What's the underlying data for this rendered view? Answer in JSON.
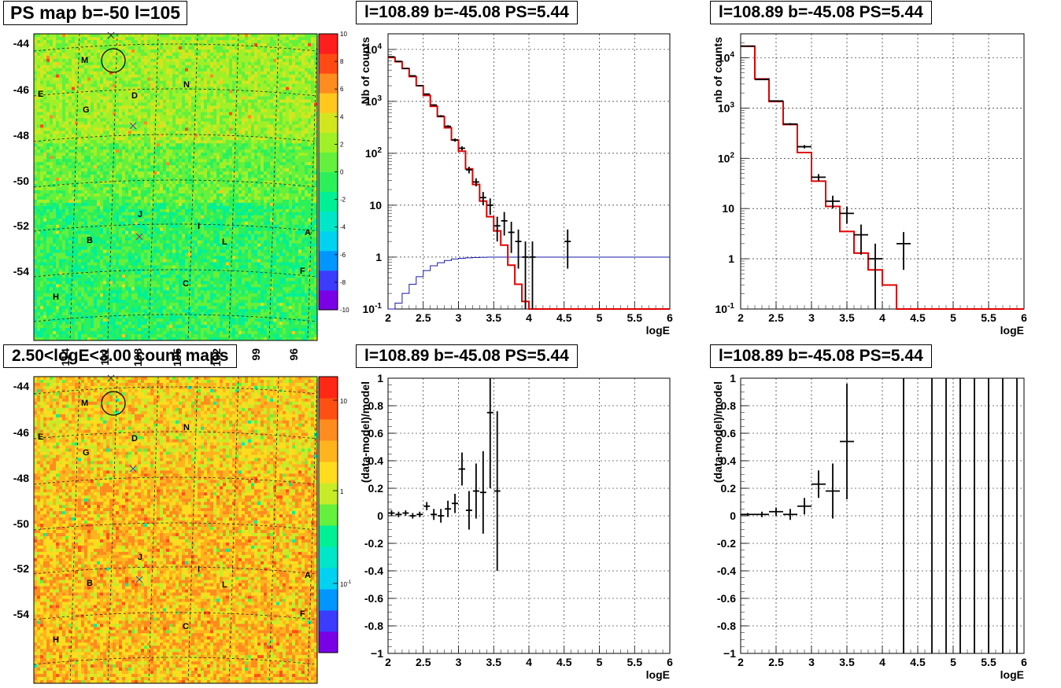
{
  "panels": {
    "map_top_title": "PS map b=-50 l=105",
    "map_bottom_title": "2.50<logE<3.00 count maps",
    "spec_title": "l=108.89 b=-45.08 PS=5.44"
  },
  "maps": {
    "lat_ticks": [
      "-44",
      "-46",
      "-48",
      "-50",
      "-52",
      "-54"
    ],
    "lon_ticks": [
      "114",
      "111",
      "108",
      "105",
      "102",
      "99",
      "96"
    ],
    "source_labels": [
      "M",
      "E",
      "G",
      "D",
      "N",
      "J",
      "I",
      "B",
      "L",
      "A",
      "C",
      "F",
      "H"
    ],
    "top_z_ticks": [
      "10",
      "8",
      "6",
      "4",
      "2",
      "0",
      "-2",
      "-4",
      "-6",
      "-8",
      "-10"
    ],
    "bottom_z_ticks": [
      "10",
      "1",
      "10^-1"
    ],
    "top_palette": [
      "#7a00e6",
      "#3c3cff",
      "#0096ff",
      "#00d2f0",
      "#00e6c8",
      "#00f096",
      "#2cf05a",
      "#64f03c",
      "#a0f028",
      "#d2e61e",
      "#ffc81e",
      "#ff8c1e",
      "#ff4a14",
      "#ff1e1e"
    ],
    "bottom_palette": [
      "#7a00e6",
      "#3c3cff",
      "#0096ff",
      "#00d2f0",
      "#00e6c8",
      "#00f096",
      "#64f03c",
      "#c8eb28",
      "#ffdc1e",
      "#ffb41e",
      "#ff8c1e",
      "#ff5014",
      "#ff2814"
    ]
  },
  "axes": {
    "xlabel": "logE",
    "ylabel_counts_left": "Nb of counts",
    "ylabel_counts_right": "nb of counts",
    "ylabel_resid": "(data-model)/model",
    "xticks": [
      "2",
      "2.5",
      "3",
      "3.5",
      "4",
      "4.5",
      "5",
      "5.5",
      "6"
    ],
    "log_ticks": [
      "10^{4}",
      "10^{3}",
      "10^{2}",
      "10",
      "1",
      "10^{-1}"
    ],
    "resid_ticks": [
      "1",
      "0.8",
      "0.6",
      "0.4",
      "0.2",
      "0",
      "-0.2",
      "-0.4",
      "-0.6",
      "-0.8",
      "-1"
    ]
  },
  "chart_data": [
    {
      "type": "heatmap",
      "title": "PS map b=-50 l=105",
      "zlim": [
        -10,
        10
      ],
      "xlim": [
        115,
        94
      ],
      "ylim": [
        -55.5,
        -43.5
      ]
    },
    {
      "type": "heatmap",
      "title": "2.50<logE<3.00 count maps",
      "scale": "log",
      "zlim": [
        0.03,
        20
      ]
    },
    {
      "type": "line",
      "title": "l=108.89 b=-45.08 PS=5.44",
      "xlabel": "logE",
      "ylabel": "Nb of counts",
      "xlim": [
        2,
        6
      ],
      "ylim": [
        0.1,
        20000
      ],
      "yscale": "log",
      "grid": true,
      "model_steps": {
        "edges": [
          2,
          2.1,
          2.2,
          2.3,
          2.4,
          2.5,
          2.6,
          2.7,
          2.8,
          2.9,
          3,
          3.1,
          3.2,
          3.3,
          3.4,
          3.5,
          3.6,
          3.7,
          3.8,
          3.9,
          4,
          4.1,
          6
        ],
        "values": [
          7000,
          5800,
          4300,
          3000,
          2000,
          1300,
          800,
          510,
          310,
          180,
          110,
          50,
          25,
          12,
          6,
          3.2,
          1.7,
          0.7,
          0.3,
          0.14,
          0.1,
          0.1
        ]
      },
      "source_model": {
        "x": [
          2.0,
          2.1,
          2.2,
          2.3,
          2.4,
          2.5,
          2.6,
          2.7,
          2.8,
          2.9,
          3.0,
          3.1,
          3.2,
          3.3,
          3.4,
          4.0,
          6.0
        ],
        "y": [
          0.1,
          0.13,
          0.2,
          0.3,
          0.42,
          0.55,
          0.68,
          0.78,
          0.86,
          0.92,
          0.95,
          0.97,
          0.98,
          0.99,
          1.0,
          1.0,
          1.0
        ]
      },
      "data_points": [
        {
          "x": 2.05,
          "y": 7200,
          "yerr": 90
        },
        {
          "x": 2.15,
          "y": 5900,
          "yerr": 80
        },
        {
          "x": 2.25,
          "y": 4300,
          "yerr": 65
        },
        {
          "x": 2.35,
          "y": 3100,
          "yerr": 55
        },
        {
          "x": 2.45,
          "y": 2000,
          "yerr": 45
        },
        {
          "x": 2.55,
          "y": 1380,
          "yerr": 37
        },
        {
          "x": 2.65,
          "y": 850,
          "yerr": 29
        },
        {
          "x": 2.75,
          "y": 520,
          "yerr": 23
        },
        {
          "x": 2.85,
          "y": 330,
          "yerr": 18
        },
        {
          "x": 2.95,
          "y": 180,
          "yerr": 13
        },
        {
          "x": 3.05,
          "y": 125,
          "yerr": 11
        },
        {
          "x": 3.15,
          "y": 48,
          "yerr": 7
        },
        {
          "x": 3.25,
          "y": 28,
          "yerr": 5
        },
        {
          "x": 3.35,
          "y": 14,
          "yerr": 4
        },
        {
          "x": 3.45,
          "y": 10,
          "yerr": 3.5
        },
        {
          "x": 3.55,
          "y": 4,
          "yerr": 2
        },
        {
          "x": 3.65,
          "y": 5,
          "yerr": 2.4
        },
        {
          "x": 3.75,
          "y": 3,
          "yerr": 1.8
        },
        {
          "x": 3.85,
          "y": 2,
          "yerr": 1.4
        },
        {
          "x": 3.95,
          "y": 1,
          "yerr": 1
        },
        {
          "x": 4.05,
          "y": 1,
          "yerr": 1
        },
        {
          "x": 4.55,
          "y": 2,
          "yerr": 1.4
        }
      ]
    },
    {
      "type": "line",
      "title": "l=108.89 b=-45.08 PS=5.44",
      "xlabel": "logE",
      "ylabel": "nb of counts",
      "xlim": [
        2,
        6
      ],
      "ylim": [
        0.1,
        30000
      ],
      "yscale": "log",
      "grid": true,
      "model_steps": {
        "edges": [
          2,
          2.2,
          2.4,
          2.6,
          2.8,
          3.0,
          3.2,
          3.4,
          3.6,
          3.8,
          4.0,
          4.2,
          6
        ],
        "values": [
          17000,
          3800,
          1350,
          470,
          130,
          35,
          11,
          3.5,
          1.3,
          0.6,
          0.3,
          0.1
        ]
      },
      "data_points": [
        {
          "x": 2.1,
          "y": 17000,
          "xerr": 0.1,
          "yerr": 130
        },
        {
          "x": 2.3,
          "y": 3700,
          "xerr": 0.1,
          "yerr": 60
        },
        {
          "x": 2.5,
          "y": 1380,
          "xerr": 0.1,
          "yerr": 37
        },
        {
          "x": 2.7,
          "y": 480,
          "xerr": 0.1,
          "yerr": 22
        },
        {
          "x": 2.9,
          "y": 170,
          "xerr": 0.1,
          "yerr": 13
        },
        {
          "x": 3.1,
          "y": 42,
          "xerr": 0.1,
          "yerr": 6.5
        },
        {
          "x": 3.3,
          "y": 14,
          "xerr": 0.1,
          "yerr": 4
        },
        {
          "x": 3.5,
          "y": 8,
          "xerr": 0.1,
          "yerr": 3
        },
        {
          "x": 3.7,
          "y": 3,
          "xerr": 0.1,
          "yerr": 1.8
        },
        {
          "x": 3.9,
          "y": 1,
          "xerr": 0.1,
          "yerr": 1
        },
        {
          "x": 4.3,
          "y": 2,
          "xerr": 0.1,
          "yerr": 1.4
        }
      ]
    },
    {
      "type": "scatter",
      "title": "l=108.89 b=-45.08 PS=5.44",
      "xlabel": "logE",
      "ylabel": "(data-model)/model",
      "xlim": [
        2,
        6
      ],
      "ylim": [
        -1,
        1
      ],
      "grid": true,
      "data_points": [
        {
          "x": 2.05,
          "y": 0.02,
          "yerr": 0.02
        },
        {
          "x": 2.15,
          "y": 0.01,
          "yerr": 0.02
        },
        {
          "x": 2.25,
          "y": 0.02,
          "yerr": 0.02
        },
        {
          "x": 2.35,
          "y": 0.0,
          "yerr": 0.02
        },
        {
          "x": 2.45,
          "y": 0.01,
          "yerr": 0.02
        },
        {
          "x": 2.55,
          "y": 0.07,
          "yerr": 0.03
        },
        {
          "x": 2.65,
          "y": 0.01,
          "yerr": 0.04
        },
        {
          "x": 2.75,
          "y": 0.0,
          "yerr": 0.05
        },
        {
          "x": 2.85,
          "y": 0.05,
          "yerr": 0.06
        },
        {
          "x": 2.95,
          "y": 0.09,
          "yerr": 0.07
        },
        {
          "x": 3.05,
          "y": 0.34,
          "yerr": 0.12
        },
        {
          "x": 3.15,
          "y": 0.04,
          "yerr": 0.14
        },
        {
          "x": 3.25,
          "y": 0.18,
          "yerr": 0.2
        },
        {
          "x": 3.35,
          "y": 0.17,
          "yerr": 0.3
        },
        {
          "x": 3.45,
          "y": 0.75,
          "yerr": 0.55
        },
        {
          "x": 3.55,
          "y": 0.18,
          "yerr": 0.58
        }
      ]
    },
    {
      "type": "scatter",
      "title": "l=108.89 b=-45.08 PS=5.44",
      "xlabel": "logE",
      "ylabel": "(data-model)/model",
      "xlim": [
        2,
        6
      ],
      "ylim": [
        -1,
        1
      ],
      "grid": true,
      "data_points": [
        {
          "x": 2.1,
          "y": 0.01,
          "xerr": 0.1,
          "yerr": 0.01
        },
        {
          "x": 2.3,
          "y": 0.01,
          "xerr": 0.1,
          "yerr": 0.02
        },
        {
          "x": 2.5,
          "y": 0.03,
          "xerr": 0.1,
          "yerr": 0.03
        },
        {
          "x": 2.7,
          "y": 0.01,
          "xerr": 0.1,
          "yerr": 0.04
        },
        {
          "x": 2.9,
          "y": 0.07,
          "xerr": 0.1,
          "yerr": 0.06
        },
        {
          "x": 3.1,
          "y": 0.23,
          "xerr": 0.1,
          "yerr": 0.1
        },
        {
          "x": 3.3,
          "y": 0.18,
          "xerr": 0.1,
          "yerr": 0.2
        },
        {
          "x": 3.5,
          "y": 0.54,
          "xerr": 0.1,
          "yerr": 0.42
        }
      ],
      "vertical_error_lines_x": [
        4.3,
        4.7,
        4.9,
        5.1,
        5.3,
        5.5,
        5.7,
        5.9
      ]
    }
  ]
}
